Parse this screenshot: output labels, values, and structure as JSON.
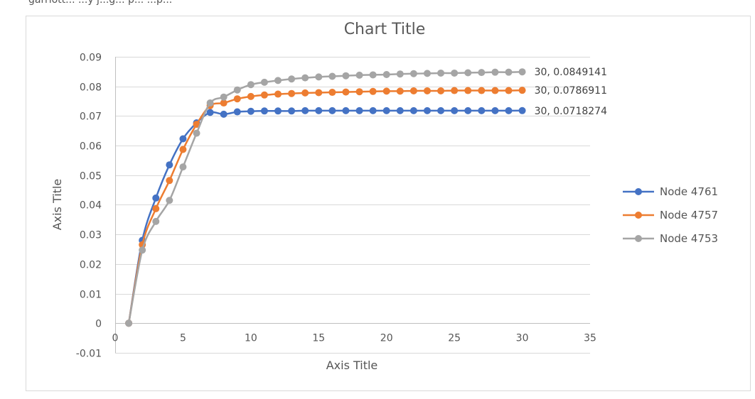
{
  "chart_data": {
    "type": "line",
    "title": "Chart Title",
    "xlabel": "Axis Title",
    "ylabel": "Axis Title",
    "xlim": [
      0,
      35
    ],
    "ylim": [
      -0.01,
      0.09
    ],
    "x_ticks": [
      0,
      5,
      10,
      15,
      20,
      25,
      30,
      35
    ],
    "x_tick_labels": [
      "0",
      "5",
      "10",
      "15",
      "20",
      "25",
      "30",
      "35"
    ],
    "y_ticks": [
      -0.01,
      0,
      0.01,
      0.02,
      0.03,
      0.04,
      0.05,
      0.06,
      0.07,
      0.08,
      0.09
    ],
    "y_tick_labels": [
      "-0.01",
      "0",
      "0.01",
      "0.02",
      "0.03",
      "0.04",
      "0.05",
      "0.06",
      "0.07",
      "0.08",
      "0.09"
    ],
    "grid": true,
    "legend": "right",
    "x": [
      1,
      2,
      3,
      4,
      5,
      6,
      7,
      8,
      9,
      10,
      11,
      12,
      13,
      14,
      15,
      16,
      17,
      18,
      19,
      20,
      21,
      22,
      23,
      24,
      25,
      26,
      27,
      28,
      29,
      30
    ],
    "series": [
      {
        "name": "Node 4761",
        "color": "#4472c4",
        "values": [
          0,
          0.028,
          0.0423,
          0.0535,
          0.0623,
          0.0677,
          0.0712,
          0.0706,
          0.0714,
          0.0716,
          0.0717,
          0.0717,
          0.0717,
          0.0718,
          0.0718,
          0.0718,
          0.0718,
          0.0718,
          0.0718,
          0.0718,
          0.0718,
          0.0718,
          0.0718,
          0.0718,
          0.0718,
          0.0718,
          0.0718,
          0.0718,
          0.0718,
          0.0718274
        ],
        "end_label": "30, 0.0718274"
      },
      {
        "name": "Node 4757",
        "color": "#ed7d31",
        "values": [
          0,
          0.0265,
          0.0387,
          0.0482,
          0.0587,
          0.0672,
          0.0735,
          0.0744,
          0.0758,
          0.0766,
          0.0771,
          0.0774,
          0.0776,
          0.0778,
          0.0779,
          0.078,
          0.0781,
          0.0782,
          0.0783,
          0.0784,
          0.0784,
          0.0785,
          0.0785,
          0.0785,
          0.0786,
          0.0786,
          0.0786,
          0.0786,
          0.0786,
          0.0786911
        ],
        "end_label": "30, 0.0786911"
      },
      {
        "name": "Node 4753",
        "color": "#a5a5a5",
        "values": [
          0,
          0.0247,
          0.0344,
          0.0415,
          0.0528,
          0.0642,
          0.0744,
          0.0764,
          0.0788,
          0.0806,
          0.0814,
          0.082,
          0.0825,
          0.0829,
          0.0832,
          0.0834,
          0.0836,
          0.0838,
          0.0839,
          0.084,
          0.0842,
          0.0843,
          0.0844,
          0.0845,
          0.0845,
          0.0846,
          0.0847,
          0.0848,
          0.0848,
          0.0849141
        ],
        "end_label": "30, 0.0849141"
      }
    ],
    "header_text": "garriott... ...y j...g... p... ...p..."
  }
}
